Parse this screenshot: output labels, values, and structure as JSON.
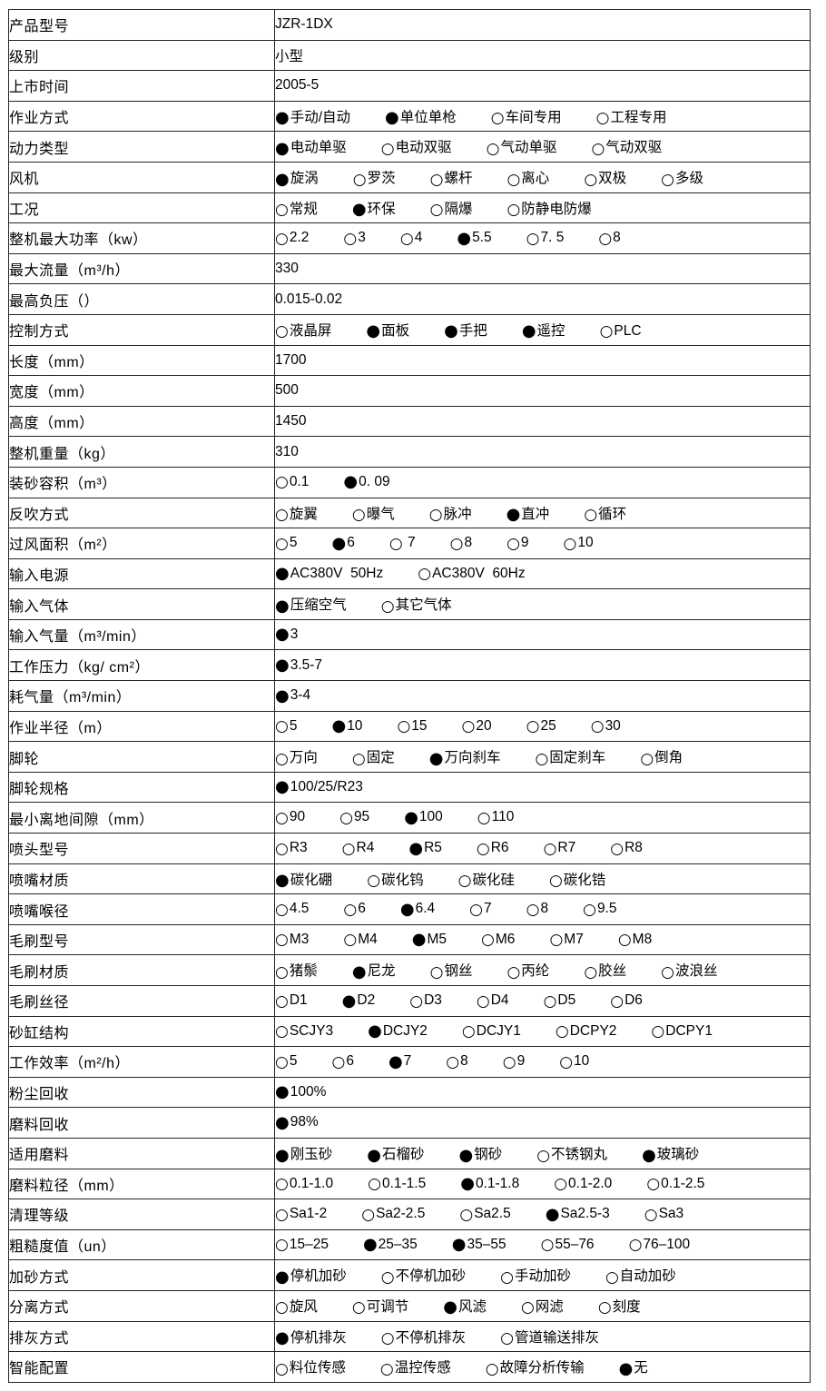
{
  "colors": {
    "background": "#ffffff",
    "border": "#262626",
    "text": "#000000"
  },
  "icons": {
    "radio_selected": "●",
    "radio_unselected": "○"
  },
  "table": {
    "rows": [
      {
        "label": "产品型号",
        "value": "JZR-1DX"
      },
      {
        "label": "级别",
        "value": "小型"
      },
      {
        "label": "上市时间",
        "value": "2005-5"
      },
      {
        "label": "作业方式",
        "options": [
          {
            "label": "手动/自动",
            "selected": true
          },
          {
            "label": "单位单枪",
            "selected": true
          },
          {
            "label": "车间专用",
            "selected": false
          },
          {
            "label": "工程专用",
            "selected": false
          }
        ]
      },
      {
        "label": "动力类型",
        "options": [
          {
            "label": "电动单驱",
            "selected": true
          },
          {
            "label": "电动双驱",
            "selected": false
          },
          {
            "label": "气动单驱",
            "selected": false
          },
          {
            "label": "气动双驱",
            "selected": false
          }
        ]
      },
      {
        "label": "风机",
        "options": [
          {
            "label": "旋涡",
            "selected": true
          },
          {
            "label": "罗茨",
            "selected": false
          },
          {
            "label": "螺杆",
            "selected": false
          },
          {
            "label": "离心",
            "selected": false
          },
          {
            "label": "双极",
            "selected": false
          },
          {
            "label": "多级",
            "selected": false
          }
        ]
      },
      {
        "label": "工况",
        "options": [
          {
            "label": "常规",
            "selected": false
          },
          {
            "label": "环保",
            "selected": true
          },
          {
            "label": "隔爆",
            "selected": false
          },
          {
            "label": "防静电防爆",
            "selected": false
          }
        ]
      },
      {
        "label": "整机最大功率（kw）",
        "options": [
          {
            "label": "2.2",
            "selected": false
          },
          {
            "label": "3",
            "selected": false
          },
          {
            "label": "4",
            "selected": false
          },
          {
            "label": "5.5",
            "selected": true
          },
          {
            "label": "7. 5",
            "selected": false
          },
          {
            "label": "8",
            "selected": false
          }
        ]
      },
      {
        "label": "最大流量（m³/h）",
        "value": "330"
      },
      {
        "label": "最高负压（）",
        "value": "0.015-0.02"
      },
      {
        "label": "控制方式",
        "options": [
          {
            "label": "液晶屏",
            "selected": false
          },
          {
            "label": "面板",
            "selected": true
          },
          {
            "label": "手把",
            "selected": true
          },
          {
            "label": "遥控",
            "selected": true
          },
          {
            "label": "PLC",
            "selected": false
          }
        ]
      },
      {
        "label": "长度（mm）",
        "value": "1700"
      },
      {
        "label": "宽度（mm）",
        "value": "500"
      },
      {
        "label": "高度（mm）",
        "value": "1450"
      },
      {
        "label": "整机重量（kg）",
        "value": "310"
      },
      {
        "label": "装砂容积（m³）",
        "options": [
          {
            "label": "0.1",
            "selected": false
          },
          {
            "label": "0. 09",
            "selected": true
          }
        ]
      },
      {
        "label": "反吹方式",
        "options": [
          {
            "label": "旋翼",
            "selected": false
          },
          {
            "label": "曝气",
            "selected": false
          },
          {
            "label": "脉冲",
            "selected": false
          },
          {
            "label": "直冲",
            "selected": true
          },
          {
            "label": "循环",
            "selected": false
          }
        ]
      },
      {
        "label": "过风面积（m²）",
        "options": [
          {
            "label": "5",
            "selected": false
          },
          {
            "label": "6",
            "selected": true
          },
          {
            "label": " 7",
            "selected": false
          },
          {
            "label": "8",
            "selected": false
          },
          {
            "label": "9",
            "selected": false
          },
          {
            "label": "10",
            "selected": false
          }
        ]
      },
      {
        "label": "输入电源",
        "options": [
          {
            "label": "AC380V  50Hz",
            "selected": true
          },
          {
            "label": "AC380V  60Hz",
            "selected": false
          }
        ]
      },
      {
        "label": "输入气体",
        "options": [
          {
            "label": "压缩空气",
            "selected": true
          },
          {
            "label": "其它气体",
            "selected": false
          }
        ]
      },
      {
        "label": "输入气量（m³/min）",
        "options": [
          {
            "label": "3",
            "selected": true
          }
        ]
      },
      {
        "label": "工作压力（kg/ cm²）",
        "options": [
          {
            "label": "3.5-7",
            "selected": true
          }
        ]
      },
      {
        "label": "耗气量（m³/min）",
        "options": [
          {
            "label": "3-4",
            "selected": true
          }
        ]
      },
      {
        "label": "作业半径（m）",
        "options": [
          {
            "label": "5",
            "selected": false
          },
          {
            "label": "10",
            "selected": true
          },
          {
            "label": "15",
            "selected": false
          },
          {
            "label": "20",
            "selected": false
          },
          {
            "label": "25",
            "selected": false
          },
          {
            "label": "30",
            "selected": false
          }
        ]
      },
      {
        "label": "脚轮",
        "options": [
          {
            "label": "万向",
            "selected": false
          },
          {
            "label": "固定",
            "selected": false
          },
          {
            "label": "万向刹车",
            "selected": true
          },
          {
            "label": "固定刹车",
            "selected": false
          },
          {
            "label": "倒角",
            "selected": false
          }
        ]
      },
      {
        "label": "脚轮规格",
        "options": [
          {
            "label": "100/25/R23",
            "selected": true
          }
        ]
      },
      {
        "label": "最小离地间隙（mm）",
        "options": [
          {
            "label": "90",
            "selected": false
          },
          {
            "label": "95",
            "selected": false
          },
          {
            "label": "100",
            "selected": true
          },
          {
            "label": "110",
            "selected": false
          }
        ]
      },
      {
        "label": "喷头型号",
        "options": [
          {
            "label": "R3",
            "selected": false
          },
          {
            "label": "R4",
            "selected": false
          },
          {
            "label": "R5",
            "selected": true
          },
          {
            "label": "R6",
            "selected": false
          },
          {
            "label": "R7",
            "selected": false
          },
          {
            "label": "R8",
            "selected": false
          }
        ]
      },
      {
        "label": "喷嘴材质",
        "options": [
          {
            "label": "碳化硼",
            "selected": true
          },
          {
            "label": "碳化钨",
            "selected": false
          },
          {
            "label": "碳化硅",
            "selected": false
          },
          {
            "label": "碳化锆",
            "selected": false
          }
        ]
      },
      {
        "label": "喷嘴喉径",
        "options": [
          {
            "label": "4.5",
            "selected": false
          },
          {
            "label": "6",
            "selected": false
          },
          {
            "label": "6.4",
            "selected": true
          },
          {
            "label": "7",
            "selected": false
          },
          {
            "label": "8",
            "selected": false
          },
          {
            "label": "9.5",
            "selected": false
          }
        ]
      },
      {
        "label": "毛刷型号",
        "options": [
          {
            "label": "M3",
            "selected": false
          },
          {
            "label": "M4",
            "selected": false
          },
          {
            "label": "M5",
            "selected": true
          },
          {
            "label": "M6",
            "selected": false
          },
          {
            "label": "M7",
            "selected": false
          },
          {
            "label": "M8",
            "selected": false
          }
        ]
      },
      {
        "label": "毛刷材质",
        "options": [
          {
            "label": "猪鬃",
            "selected": false
          },
          {
            "label": "尼龙",
            "selected": true
          },
          {
            "label": "钢丝",
            "selected": false
          },
          {
            "label": "丙纶",
            "selected": false
          },
          {
            "label": "胶丝",
            "selected": false
          },
          {
            "label": "波浪丝",
            "selected": false
          }
        ]
      },
      {
        "label": "毛刷丝径",
        "options": [
          {
            "label": "D1",
            "selected": false
          },
          {
            "label": "D2",
            "selected": true
          },
          {
            "label": "D3",
            "selected": false
          },
          {
            "label": "D4",
            "selected": false
          },
          {
            "label": "D5",
            "selected": false
          },
          {
            "label": "D6",
            "selected": false
          }
        ]
      },
      {
        "label": "砂缸结构",
        "options": [
          {
            "label": "SCJY3",
            "selected": false
          },
          {
            "label": "DCJY2",
            "selected": true
          },
          {
            "label": "DCJY1",
            "selected": false
          },
          {
            "label": "DCPY2",
            "selected": false
          },
          {
            "label": "DCPY1",
            "selected": false
          }
        ]
      },
      {
        "label": "工作效率（m²/h）",
        "options": [
          {
            "label": "5",
            "selected": false
          },
          {
            "label": "6",
            "selected": false
          },
          {
            "label": "7",
            "selected": true
          },
          {
            "label": "8",
            "selected": false
          },
          {
            "label": "9",
            "selected": false
          },
          {
            "label": "10",
            "selected": false
          }
        ]
      },
      {
        "label": "粉尘回收",
        "options": [
          {
            "label": "100%",
            "selected": true
          }
        ]
      },
      {
        "label": "磨料回收",
        "options": [
          {
            "label": "98%",
            "selected": true
          }
        ]
      },
      {
        "label": "适用磨料",
        "options": [
          {
            "label": "刚玉砂",
            "selected": true
          },
          {
            "label": "石榴砂",
            "selected": true
          },
          {
            "label": "钢砂",
            "selected": true
          },
          {
            "label": "不锈钢丸",
            "selected": false
          },
          {
            "label": "玻璃砂",
            "selected": true
          }
        ]
      },
      {
        "label": "磨料粒径（mm）",
        "options": [
          {
            "label": "0.1-1.0",
            "selected": false
          },
          {
            "label": "0.1-1.5",
            "selected": false
          },
          {
            "label": "0.1-1.8",
            "selected": true
          },
          {
            "label": "0.1-2.0",
            "selected": false
          },
          {
            "label": "0.1-2.5",
            "selected": false
          }
        ]
      },
      {
        "label": "清理等级",
        "options": [
          {
            "label": "Sa1-2",
            "selected": false
          },
          {
            "label": "Sa2-2.5",
            "selected": false
          },
          {
            "label": "Sa2.5",
            "selected": false
          },
          {
            "label": "Sa2.5-3",
            "selected": true
          },
          {
            "label": "Sa3",
            "selected": false
          }
        ]
      },
      {
        "label": "粗糙度值（un）",
        "options": [
          {
            "label": "15–25",
            "selected": false
          },
          {
            "label": "25–35",
            "selected": true
          },
          {
            "label": "35–55",
            "selected": true
          },
          {
            "label": "55–76",
            "selected": false
          },
          {
            "label": "76–100",
            "selected": false
          }
        ]
      },
      {
        "label": "加砂方式",
        "options": [
          {
            "label": "停机加砂",
            "selected": true
          },
          {
            "label": "不停机加砂",
            "selected": false
          },
          {
            "label": "手动加砂",
            "selected": false
          },
          {
            "label": "自动加砂",
            "selected": false
          }
        ]
      },
      {
        "label": "分离方式",
        "options": [
          {
            "label": "旋风",
            "selected": false
          },
          {
            "label": "可调节",
            "selected": false
          },
          {
            "label": "风滤",
            "selected": true
          },
          {
            "label": "网滤",
            "selected": false
          },
          {
            "label": "刻度",
            "selected": false
          }
        ]
      },
      {
        "label": "排灰方式",
        "options": [
          {
            "label": "停机排灰",
            "selected": true
          },
          {
            "label": "不停机排灰",
            "selected": false
          },
          {
            "label": "管道输送排灰",
            "selected": false
          }
        ]
      },
      {
        "label": "智能配置",
        "options": [
          {
            "label": "料位传感",
            "selected": false
          },
          {
            "label": "温控传感",
            "selected": false
          },
          {
            "label": "故障分析传输",
            "selected": false
          },
          {
            "label": "无",
            "selected": true
          }
        ]
      }
    ]
  }
}
